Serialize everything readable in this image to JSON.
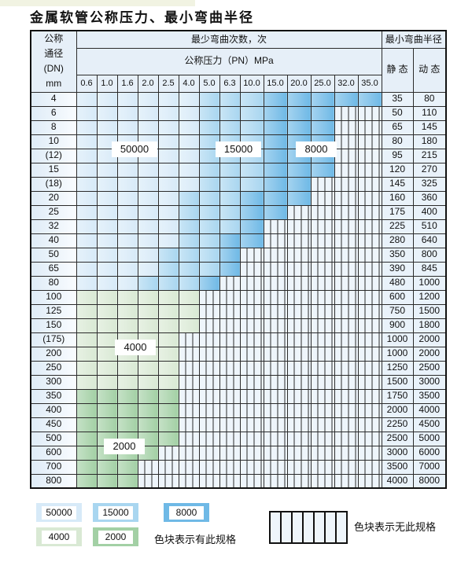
{
  "title": "金属软管公称压力、最小弯曲半径",
  "colors": {
    "cycles_50000": "#d7eaf8",
    "cycles_15000": "#a9d6f0",
    "cycles_8000": "#6fb9e6",
    "cycles_4000": "#d9e9d4",
    "cycles_2000": "#a3d0a5",
    "no_spec_hatch_bg": "#eef5fb",
    "grid_line": "#2b2b2b",
    "header_bg": "#e6eff8"
  },
  "table": {
    "dn_header_lines": [
      "公称",
      "通径",
      "(DN)",
      "mm"
    ],
    "bend_header": "最少弯曲次数，次",
    "pressure_header": "公称压力（PN）MPa",
    "radius_header": "最小弯曲半径",
    "static_header": "静 态",
    "dynamic_header": "动 态"
  },
  "region_labels": {
    "r50000": "50000",
    "r15000": "15000",
    "r8000": "8000",
    "r4000": "4000",
    "r2000": "2000"
  },
  "legend": {
    "items": [
      {
        "label": "50000",
        "color": "#d7eaf8"
      },
      {
        "label": "15000",
        "color": "#a9d6f0"
      },
      {
        "label": "8000",
        "color": "#6fb9e6"
      },
      {
        "label": "4000",
        "color": "#d9e9d4"
      },
      {
        "label": "2000",
        "color": "#a3d0a5"
      }
    ],
    "has_spec_note": "色块表示有此规格",
    "no_spec_note": "色块表示无此规格"
  },
  "chart_data": {
    "type": "table",
    "title": "金属软管公称压力、最小弯曲半径",
    "columns_pressure_MPa": [
      "0.6",
      "1.0",
      "1.6",
      "2.0",
      "2.5",
      "4.0",
      "5.0",
      "6.3",
      "10.0",
      "15.0",
      "20.0",
      "25.0",
      "32.0",
      "35.0"
    ],
    "cell_code_meaning": {
      "b1": "最少弯曲次数 50000 次",
      "b2": "最少弯曲次数 15000 次",
      "b3": "最少弯曲次数 8000 次",
      "g1": "最少弯曲次数 4000 次",
      "g2": "最少弯曲次数 2000 次",
      "x": "无此规格"
    },
    "rows": [
      {
        "dn": "4",
        "static_radius": "35",
        "dynamic_radius": "80",
        "cells": [
          "b1",
          "b1",
          "b1",
          "b1",
          "b1",
          "b1",
          "b2",
          "b2",
          "b2",
          "b3",
          "b3",
          "b3",
          "b3",
          "b3"
        ]
      },
      {
        "dn": "6",
        "static_radius": "50",
        "dynamic_radius": "110",
        "cells": [
          "b1",
          "b1",
          "b1",
          "b1",
          "b1",
          "b1",
          "b2",
          "b2",
          "b2",
          "b3",
          "b3",
          "b3",
          "x",
          "x"
        ]
      },
      {
        "dn": "8",
        "static_radius": "65",
        "dynamic_radius": "145",
        "cells": [
          "b1",
          "b1",
          "b1",
          "b1",
          "b1",
          "b1",
          "b2",
          "b2",
          "b2",
          "b3",
          "b3",
          "b3",
          "x",
          "x"
        ]
      },
      {
        "dn": "10",
        "static_radius": "80",
        "dynamic_radius": "180",
        "cells": [
          "b1",
          "b1",
          "b1",
          "b1",
          "b1",
          "b1",
          "b2",
          "b2",
          "b2",
          "b3",
          "b3",
          "b3",
          "x",
          "x"
        ]
      },
      {
        "dn": "(12)",
        "static_radius": "95",
        "dynamic_radius": "215",
        "cells": [
          "b1",
          "b1",
          "b1",
          "b1",
          "b1",
          "b1",
          "b2",
          "b2",
          "b2",
          "b3",
          "b3",
          "b3",
          "x",
          "x"
        ]
      },
      {
        "dn": "15",
        "static_radius": "120",
        "dynamic_radius": "270",
        "cells": [
          "b1",
          "b1",
          "b1",
          "b1",
          "b1",
          "b1",
          "b2",
          "b2",
          "b2",
          "b3",
          "b3",
          "b3",
          "x",
          "x"
        ]
      },
      {
        "dn": "(18)",
        "static_radius": "145",
        "dynamic_radius": "325",
        "cells": [
          "b1",
          "b1",
          "b1",
          "b1",
          "b1",
          "b1",
          "b2",
          "b2",
          "b2",
          "b3",
          "b3",
          "x",
          "x",
          "x"
        ]
      },
      {
        "dn": "20",
        "static_radius": "160",
        "dynamic_radius": "360",
        "cells": [
          "b1",
          "b1",
          "b1",
          "b1",
          "b1",
          "b2",
          "b2",
          "b2",
          "b3",
          "b3",
          "b3",
          "x",
          "x",
          "x"
        ]
      },
      {
        "dn": "25",
        "static_radius": "175",
        "dynamic_radius": "400",
        "cells": [
          "b1",
          "b1",
          "b1",
          "b1",
          "b1",
          "b2",
          "b2",
          "b2",
          "b3",
          "b3",
          "x",
          "x",
          "x",
          "x"
        ]
      },
      {
        "dn": "32",
        "static_radius": "225",
        "dynamic_radius": "510",
        "cells": [
          "b1",
          "b1",
          "b1",
          "b1",
          "b1",
          "b2",
          "b2",
          "b2",
          "b3",
          "x",
          "x",
          "x",
          "x",
          "x"
        ]
      },
      {
        "dn": "40",
        "static_radius": "280",
        "dynamic_radius": "640",
        "cells": [
          "b1",
          "b1",
          "b1",
          "b1",
          "b1",
          "b2",
          "b2",
          "b3",
          "b3",
          "x",
          "x",
          "x",
          "x",
          "x"
        ]
      },
      {
        "dn": "50",
        "static_radius": "350",
        "dynamic_radius": "800",
        "cells": [
          "b1",
          "b1",
          "b1",
          "b1",
          "b2",
          "b2",
          "b2",
          "b3",
          "x",
          "x",
          "x",
          "x",
          "x",
          "x"
        ]
      },
      {
        "dn": "65",
        "static_radius": "390",
        "dynamic_radius": "845",
        "cells": [
          "b1",
          "b1",
          "b1",
          "b1",
          "b2",
          "b2",
          "b2",
          "b3",
          "x",
          "x",
          "x",
          "x",
          "x",
          "x"
        ]
      },
      {
        "dn": "80",
        "static_radius": "480",
        "dynamic_radius": "1000",
        "cells": [
          "b1",
          "b1",
          "b1",
          "b2",
          "b2",
          "b2",
          "b3",
          "x",
          "x",
          "x",
          "x",
          "x",
          "x",
          "x"
        ]
      },
      {
        "dn": "100",
        "static_radius": "600",
        "dynamic_radius": "1200",
        "cells": [
          "g1",
          "g1",
          "g1",
          "g1",
          "g1",
          "g1",
          "x",
          "x",
          "x",
          "x",
          "x",
          "x",
          "x",
          "x"
        ]
      },
      {
        "dn": "125",
        "static_radius": "750",
        "dynamic_radius": "1500",
        "cells": [
          "g1",
          "g1",
          "g1",
          "g1",
          "g1",
          "g1",
          "x",
          "x",
          "x",
          "x",
          "x",
          "x",
          "x",
          "x"
        ]
      },
      {
        "dn": "150",
        "static_radius": "900",
        "dynamic_radius": "1800",
        "cells": [
          "g1",
          "g1",
          "g1",
          "g1",
          "g1",
          "g1",
          "x",
          "x",
          "x",
          "x",
          "x",
          "x",
          "x",
          "x"
        ]
      },
      {
        "dn": "(175)",
        "static_radius": "1000",
        "dynamic_radius": "2000",
        "cells": [
          "g1",
          "g1",
          "g1",
          "g1",
          "g1",
          "x",
          "x",
          "x",
          "x",
          "x",
          "x",
          "x",
          "x",
          "x"
        ]
      },
      {
        "dn": "200",
        "static_radius": "1000",
        "dynamic_radius": "2000",
        "cells": [
          "g1",
          "g1",
          "g1",
          "g1",
          "g1",
          "x",
          "x",
          "x",
          "x",
          "x",
          "x",
          "x",
          "x",
          "x"
        ]
      },
      {
        "dn": "250",
        "static_radius": "1250",
        "dynamic_radius": "2500",
        "cells": [
          "g1",
          "g1",
          "g1",
          "g1",
          "g1",
          "x",
          "x",
          "x",
          "x",
          "x",
          "x",
          "x",
          "x",
          "x"
        ]
      },
      {
        "dn": "300",
        "static_radius": "1500",
        "dynamic_radius": "3000",
        "cells": [
          "g1",
          "g1",
          "g1",
          "g1",
          "g1",
          "x",
          "x",
          "x",
          "x",
          "x",
          "x",
          "x",
          "x",
          "x"
        ]
      },
      {
        "dn": "350",
        "static_radius": "1750",
        "dynamic_radius": "3500",
        "cells": [
          "g2",
          "g2",
          "g2",
          "g2",
          "g2",
          "x",
          "x",
          "x",
          "x",
          "x",
          "x",
          "x",
          "x",
          "x"
        ]
      },
      {
        "dn": "400",
        "static_radius": "2000",
        "dynamic_radius": "4000",
        "cells": [
          "g2",
          "g2",
          "g2",
          "g2",
          "g2",
          "x",
          "x",
          "x",
          "x",
          "x",
          "x",
          "x",
          "x",
          "x"
        ]
      },
      {
        "dn": "450",
        "static_radius": "2250",
        "dynamic_radius": "4500",
        "cells": [
          "g2",
          "g2",
          "g2",
          "g2",
          "g2",
          "x",
          "x",
          "x",
          "x",
          "x",
          "x",
          "x",
          "x",
          "x"
        ]
      },
      {
        "dn": "500",
        "static_radius": "2500",
        "dynamic_radius": "5000",
        "cells": [
          "g2",
          "g2",
          "g2",
          "g2",
          "g2",
          "x",
          "x",
          "x",
          "x",
          "x",
          "x",
          "x",
          "x",
          "x"
        ]
      },
      {
        "dn": "600",
        "static_radius": "3000",
        "dynamic_radius": "6000",
        "cells": [
          "g2",
          "g2",
          "g2",
          "g2",
          "x",
          "x",
          "x",
          "x",
          "x",
          "x",
          "x",
          "x",
          "x",
          "x"
        ]
      },
      {
        "dn": "700",
        "static_radius": "3500",
        "dynamic_radius": "7000",
        "cells": [
          "g2",
          "g2",
          "g2",
          "x",
          "x",
          "x",
          "x",
          "x",
          "x",
          "x",
          "x",
          "x",
          "x",
          "x"
        ]
      },
      {
        "dn": "800",
        "static_radius": "4000",
        "dynamic_radius": "8000",
        "cells": [
          "g2",
          "g2",
          "g2",
          "x",
          "x",
          "x",
          "x",
          "x",
          "x",
          "x",
          "x",
          "x",
          "x",
          "x"
        ]
      }
    ]
  }
}
